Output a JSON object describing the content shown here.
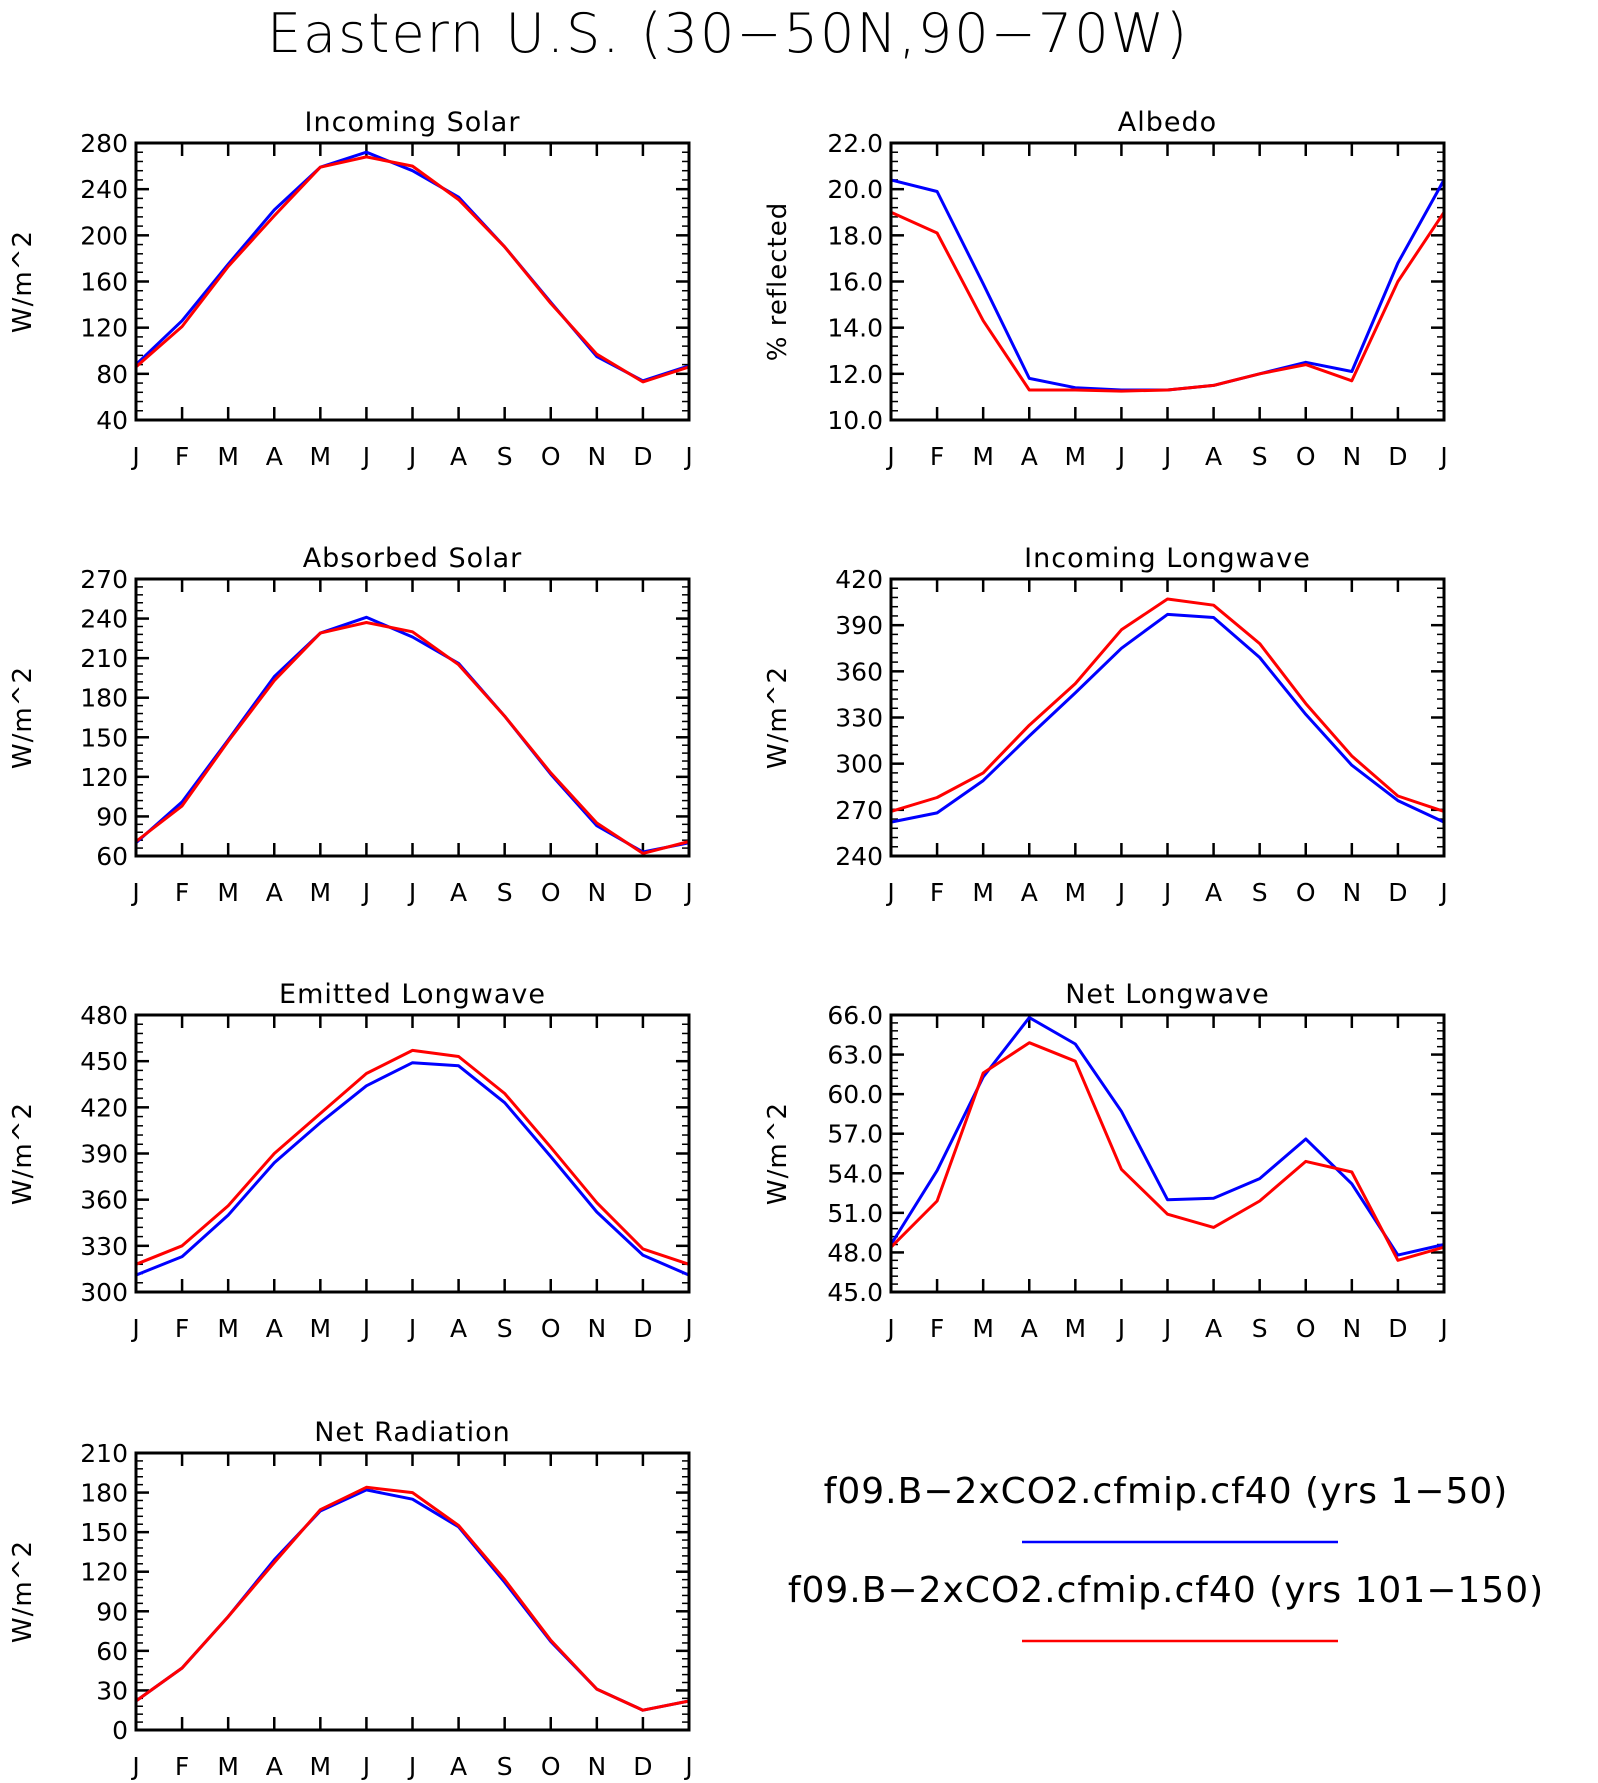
{
  "title": "Eastern U.S. (30−50N,90−70W)",
  "colors": {
    "blue": "#0000ff",
    "red": "#ff0000"
  },
  "legend": [
    {
      "label": "f09.B−2xCO2.cfmip.cf40 (yrs 1−50)",
      "color": "#0000ff"
    },
    {
      "label": "f09.B−2xCO2.cfmip.cf40 (yrs 101−150)",
      "color": "#ff0000"
    }
  ],
  "chart_data": [
    {
      "type": "line",
      "title": "Incoming Solar",
      "ylabel": "W/m^2",
      "categories": [
        "J",
        "F",
        "M",
        "A",
        "M",
        "J",
        "J",
        "A",
        "S",
        "O",
        "N",
        "D",
        "J"
      ],
      "ylim": [
        40,
        280
      ],
      "yticks": [
        "40",
        "80",
        "120",
        "160",
        "200",
        "240",
        "280"
      ],
      "series": [
        {
          "name": "f09.B−2xCO2.cfmip.cf40 (yrs 1−50)",
          "color": "#0000ff",
          "values": [
            88,
            126,
            175,
            222,
            259,
            272,
            256,
            233,
            190,
            142,
            95,
            74,
            87
          ]
        },
        {
          "name": "f09.B−2xCO2.cfmip.cf40 (yrs 101−150)",
          "color": "#ff0000",
          "values": [
            86,
            121,
            173,
            217,
            259,
            268,
            260,
            231,
            190,
            141,
            97,
            73,
            86
          ]
        }
      ]
    },
    {
      "type": "line",
      "title": "Albedo",
      "ylabel": "% reflected",
      "categories": [
        "J",
        "F",
        "M",
        "A",
        "M",
        "J",
        "J",
        "A",
        "S",
        "O",
        "N",
        "D",
        "J"
      ],
      "ylim": [
        10,
        22
      ],
      "yticks": [
        "10.0",
        "12.0",
        "14.0",
        "16.0",
        "18.0",
        "20.0",
        "22.0"
      ],
      "series": [
        {
          "name": "f09.B−2xCO2.cfmip.cf40 (yrs 1−50)",
          "color": "#0000ff",
          "values": [
            20.4,
            19.9,
            15.9,
            11.8,
            11.4,
            11.3,
            11.3,
            11.5,
            12.0,
            12.5,
            12.1,
            16.8,
            20.4
          ]
        },
        {
          "name": "f09.B−2xCO2.cfmip.cf40 (yrs 101−150)",
          "color": "#ff0000",
          "values": [
            19.0,
            18.1,
            14.3,
            11.3,
            11.3,
            11.25,
            11.3,
            11.5,
            12.0,
            12.4,
            11.7,
            16.0,
            19.0
          ]
        }
      ]
    },
    {
      "type": "line",
      "title": "Absorbed Solar",
      "ylabel": "W/m^2",
      "categories": [
        "J",
        "F",
        "M",
        "A",
        "M",
        "J",
        "J",
        "A",
        "S",
        "O",
        "N",
        "D",
        "J"
      ],
      "ylim": [
        60,
        270
      ],
      "yticks": [
        "60",
        "90",
        "120",
        "150",
        "180",
        "210",
        "240",
        "270"
      ],
      "series": [
        {
          "name": "f09.B−2xCO2.cfmip.cf40 (yrs 1−50)",
          "color": "#0000ff",
          "values": [
            70,
            101,
            148,
            196,
            229,
            241,
            226,
            206,
            166,
            122,
            83,
            63,
            70
          ]
        },
        {
          "name": "f09.B−2xCO2.cfmip.cf40 (yrs 101−150)",
          "color": "#ff0000",
          "values": [
            71,
            98,
            147,
            193,
            229,
            237,
            230,
            205,
            166,
            123,
            85,
            62,
            71
          ]
        }
      ]
    },
    {
      "type": "line",
      "title": "Incoming Longwave",
      "ylabel": "W/m^2",
      "categories": [
        "J",
        "F",
        "M",
        "A",
        "M",
        "J",
        "J",
        "A",
        "S",
        "O",
        "N",
        "D",
        "J"
      ],
      "ylim": [
        240,
        420
      ],
      "yticks": [
        "240",
        "270",
        "300",
        "330",
        "360",
        "390",
        "420"
      ],
      "series": [
        {
          "name": "f09.B−2xCO2.cfmip.cf40 (yrs 1−50)",
          "color": "#0000ff",
          "values": [
            262,
            268,
            289,
            318,
            346,
            375,
            397,
            395,
            369,
            332,
            299,
            276,
            262
          ]
        },
        {
          "name": "f09.B−2xCO2.cfmip.cf40 (yrs 101−150)",
          "color": "#ff0000",
          "values": [
            269,
            278,
            294,
            325,
            352,
            387,
            407,
            403,
            378,
            339,
            305,
            279,
            269
          ]
        }
      ]
    },
    {
      "type": "line",
      "title": "Emitted Longwave",
      "ylabel": "W/m^2",
      "categories": [
        "J",
        "F",
        "M",
        "A",
        "M",
        "J",
        "J",
        "A",
        "S",
        "O",
        "N",
        "D",
        "J"
      ],
      "ylim": [
        300,
        480
      ],
      "yticks": [
        "300",
        "330",
        "360",
        "390",
        "420",
        "450",
        "480"
      ],
      "series": [
        {
          "name": "f09.B−2xCO2.cfmip.cf40 (yrs 1−50)",
          "color": "#0000ff",
          "values": [
            311,
            323,
            350,
            384,
            410,
            434,
            449,
            447,
            423,
            388,
            352,
            324,
            311
          ]
        },
        {
          "name": "f09.B−2xCO2.cfmip.cf40 (yrs 101−150)",
          "color": "#ff0000",
          "values": [
            318,
            330,
            356,
            390,
            416,
            442,
            457,
            453,
            429,
            394,
            358,
            328,
            318
          ]
        }
      ]
    },
    {
      "type": "line",
      "title": "Net Longwave",
      "ylabel": "W/m^2",
      "categories": [
        "J",
        "F",
        "M",
        "A",
        "M",
        "J",
        "J",
        "A",
        "S",
        "O",
        "N",
        "D",
        "J"
      ],
      "ylim": [
        45,
        66
      ],
      "yticks": [
        "45.0",
        "48.0",
        "51.0",
        "54.0",
        "57.0",
        "60.0",
        "63.0",
        "66.0"
      ],
      "series": [
        {
          "name": "f09.B−2xCO2.cfmip.cf40 (yrs 1−50)",
          "color": "#0000ff",
          "values": [
            48.6,
            54.2,
            61.3,
            65.8,
            63.8,
            58.7,
            52.0,
            52.1,
            53.6,
            56.6,
            53.2,
            47.8,
            48.6
          ]
        },
        {
          "name": "f09.B−2xCO2.cfmip.cf40 (yrs 101−150)",
          "color": "#ff0000",
          "values": [
            48.4,
            51.9,
            61.6,
            63.9,
            62.5,
            54.3,
            50.9,
            49.9,
            51.9,
            54.9,
            54.1,
            47.4,
            48.4
          ]
        }
      ]
    },
    {
      "type": "line",
      "title": "Net Radiation",
      "ylabel": "W/m^2",
      "categories": [
        "J",
        "F",
        "M",
        "A",
        "M",
        "J",
        "J",
        "A",
        "S",
        "O",
        "N",
        "D",
        "J"
      ],
      "ylim": [
        0,
        210
      ],
      "yticks": [
        "0",
        "30",
        "60",
        "90",
        "120",
        "150",
        "180",
        "210"
      ],
      "series": [
        {
          "name": "f09.B−2xCO2.cfmip.cf40 (yrs 1−50)",
          "color": "#0000ff",
          "values": [
            22,
            47,
            86,
            129,
            166,
            182,
            175,
            154,
            112,
            67,
            31,
            15,
            22
          ]
        },
        {
          "name": "f09.B−2xCO2.cfmip.cf40 (yrs 101−150)",
          "color": "#ff0000",
          "values": [
            22,
            47,
            86,
            127,
            167,
            184,
            180,
            155,
            114,
            68,
            31,
            15,
            22
          ]
        }
      ]
    }
  ]
}
